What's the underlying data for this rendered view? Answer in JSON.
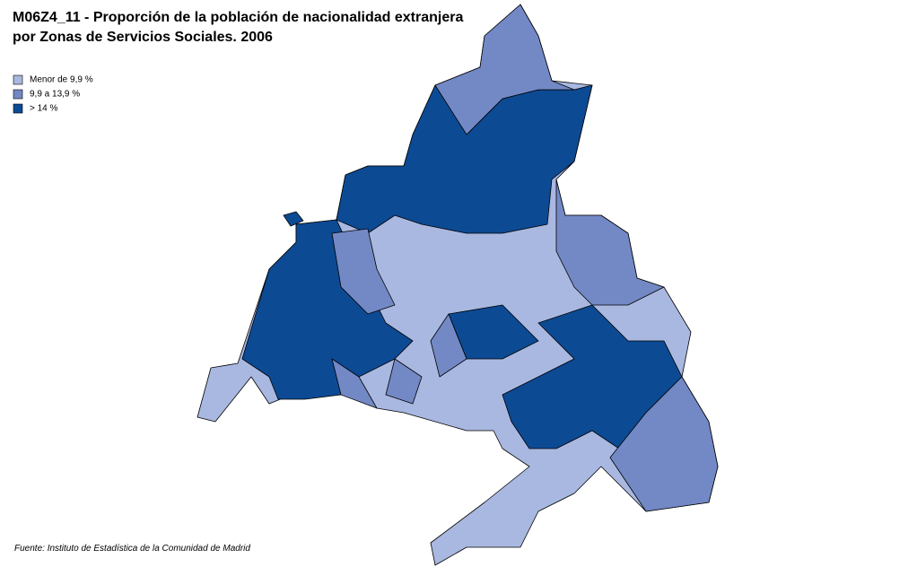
{
  "header": {
    "title_lines": [
      "M06Z4_11 - Proporción de la población de nacionalidad extranjera",
      "por Zonas de Servicios Sociales. 2006"
    ]
  },
  "legend": {
    "items": [
      {
        "label": "Menor de 9,9 %",
        "color": "#a9b8e0"
      },
      {
        "label": "9,9 a 13,9 %",
        "color": "#7389c6"
      },
      {
        "label": "> 14 %",
        "color": "#0d4a94"
      }
    ]
  },
  "footer": {
    "source": "Fuente: Instituto de Estadística de la Comunidad de Madrid"
  }
}
